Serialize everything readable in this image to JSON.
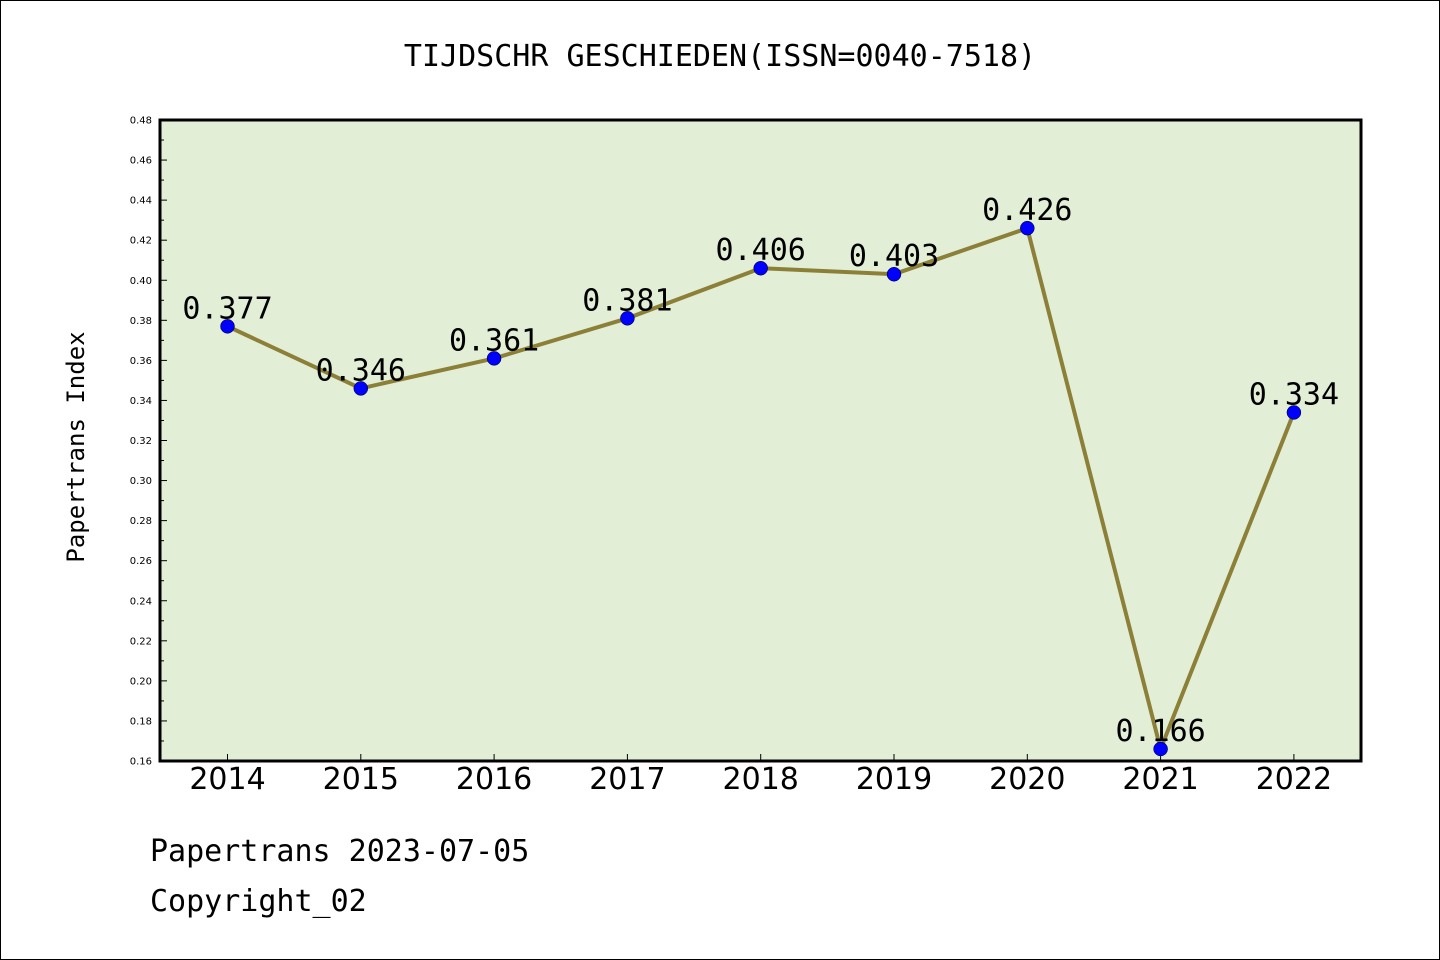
{
  "chart_data": {
    "type": "line",
    "title": "TIJDSCHR GESCHIEDEN(ISSN=0040-7518)",
    "xlabel": "",
    "ylabel": "Papertrans Index",
    "categories": [
      "2014",
      "2015",
      "2016",
      "2017",
      "2018",
      "2019",
      "2020",
      "2021",
      "2022"
    ],
    "series": [
      {
        "values": [
          0.377,
          0.346,
          0.361,
          0.381,
          0.406,
          0.403,
          0.426,
          0.166,
          0.334
        ],
        "labels": [
          "0.377",
          "0.346",
          "0.361",
          "0.381",
          "0.406",
          "0.403",
          "0.426",
          "0.166",
          "0.334"
        ]
      }
    ],
    "ylim": [
      0.16,
      0.48
    ],
    "y_ticks": [
      "0.16",
      "0.18",
      "0.20",
      "0.22",
      "0.24",
      "0.26",
      "0.28",
      "0.30",
      "0.32",
      "0.34",
      "0.36",
      "0.38",
      "0.40",
      "0.42",
      "0.44",
      "0.46",
      "0.48"
    ],
    "grid": false,
    "legend": "none",
    "colors": {
      "plot_background": "#e2efd6",
      "line": "#8c8038",
      "marker": "#0000ff"
    }
  },
  "footer": {
    "line1": "Papertrans 2023-07-05",
    "line2": "Copyright_02"
  }
}
